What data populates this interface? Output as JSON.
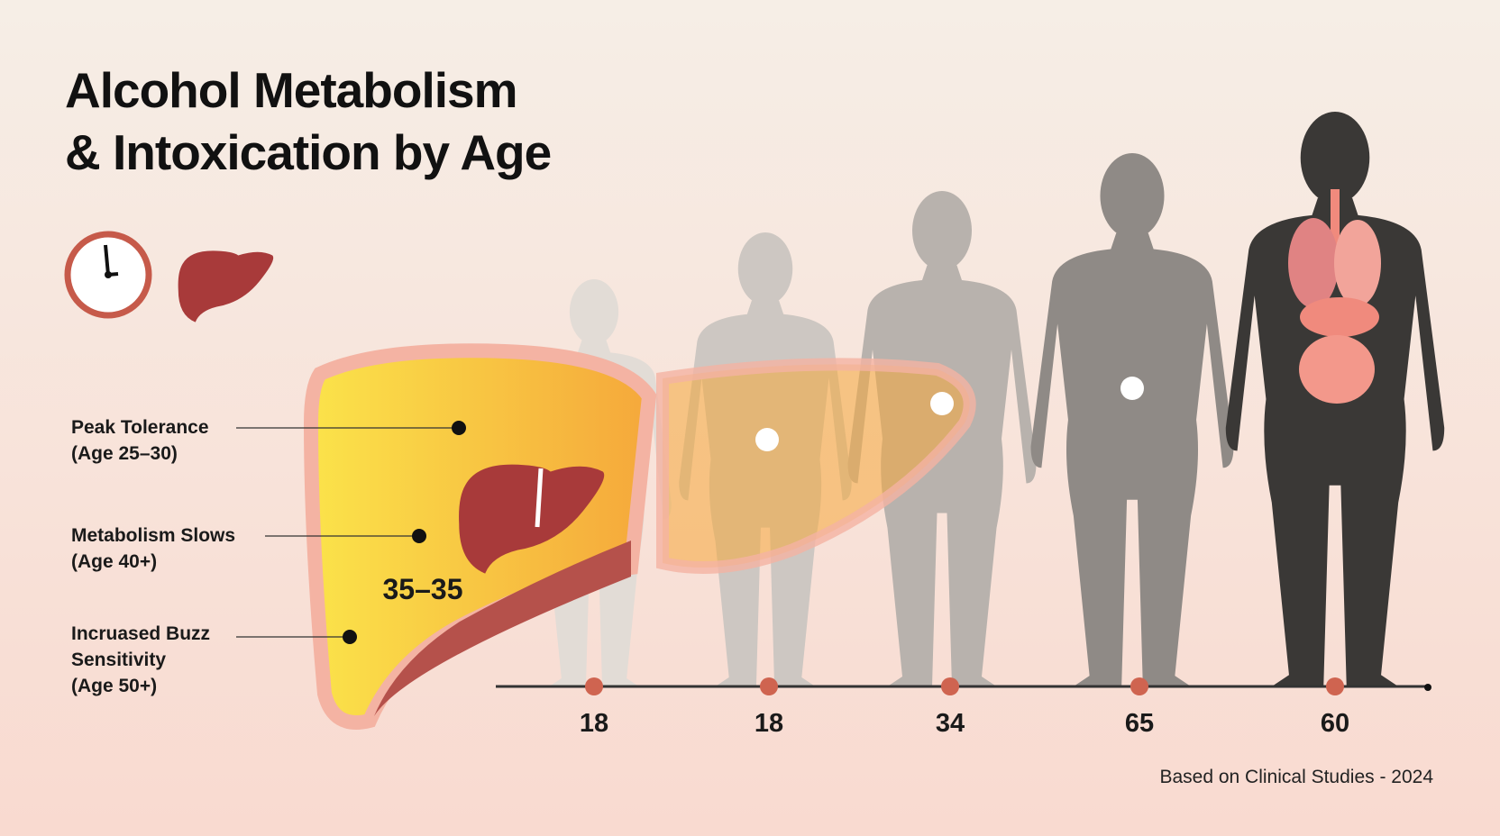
{
  "title": [
    "Alcohol Metabolism",
    "& Intoxication by Age"
  ],
  "callouts": [
    {
      "lines": [
        "Peak Tolerance",
        "(Age 25–30)"
      ]
    },
    {
      "lines": [
        "Metabolism Slows",
        "(Age 40+)"
      ]
    },
    {
      "lines": [
        "Incruased Buzz",
        "Sensitivity",
        "(Age 50+)"
      ]
    }
  ],
  "liver_label": "35–35",
  "timeline": {
    "ages": [
      18,
      18,
      34,
      65,
      60
    ]
  },
  "footer": "Based on Clinical Studies - 2024"
}
